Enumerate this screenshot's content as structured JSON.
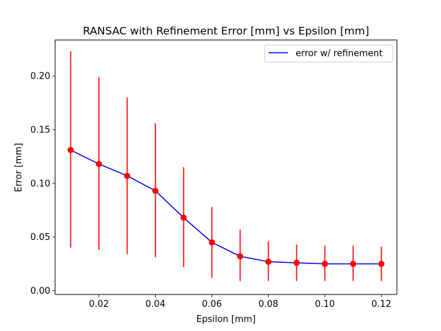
{
  "chart_data": {
    "type": "line",
    "title": "RANSAC with Refinement Error [mm] vs Epsilon [mm]",
    "xlabel": "Epsilon [mm]",
    "ylabel": "Error [mm]",
    "xlim": [
      0.0045,
      0.1255
    ],
    "ylim": [
      -0.0035,
      0.2335
    ],
    "xticks": [
      0.02,
      0.04,
      0.06,
      0.08,
      0.1,
      0.12
    ],
    "xtick_labels": [
      "0.02",
      "0.04",
      "0.06",
      "0.08",
      "0.10",
      "0.12"
    ],
    "yticks": [
      0.0,
      0.05,
      0.1,
      0.15,
      0.2
    ],
    "ytick_labels": [
      "0.00",
      "0.05",
      "0.10",
      "0.15",
      "0.20"
    ],
    "grid": false,
    "legend_position": "top-right",
    "series": [
      {
        "name": "error w/ refinement",
        "line_color": "#0000ff",
        "marker_color": "#ff0000",
        "errorbar_color": "#ff0000",
        "x": [
          0.01,
          0.02,
          0.03,
          0.04,
          0.05,
          0.06,
          0.07,
          0.08,
          0.09,
          0.1,
          0.11,
          0.12
        ],
        "y": [
          0.131,
          0.118,
          0.107,
          0.093,
          0.068,
          0.045,
          0.032,
          0.027,
          0.026,
          0.025,
          0.025,
          0.025
        ],
        "y_low": [
          0.04,
          0.038,
          0.034,
          0.031,
          0.022,
          0.012,
          0.009,
          0.009,
          0.009,
          0.009,
          0.009,
          0.009
        ],
        "y_high": [
          0.223,
          0.199,
          0.18,
          0.156,
          0.115,
          0.078,
          0.057,
          0.046,
          0.043,
          0.042,
          0.042,
          0.041
        ]
      }
    ]
  }
}
